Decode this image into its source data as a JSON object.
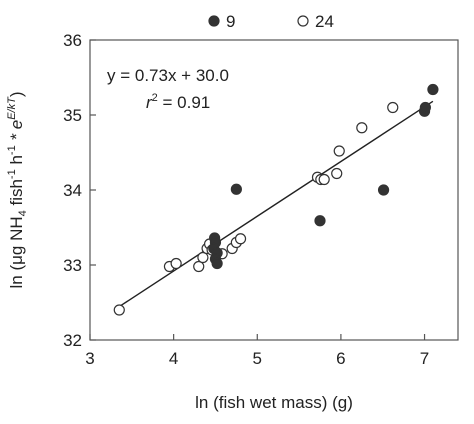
{
  "chart_data": {
    "type": "scatter",
    "title": "",
    "xlabel": "ln (fish wet mass) (g)",
    "ylabel_parts": {
      "pre": "ln (μg NH",
      "sub4": "4",
      "mid1": " fish",
      "sup1a": "-1",
      "mid2": " h",
      "sup1b": "-1",
      "mid3": " * e",
      "supE": "E/kT",
      "post": ")"
    },
    "xlim": [
      3,
      7.4
    ],
    "ylim": [
      32,
      36
    ],
    "xticks": [
      "3",
      "4",
      "5",
      "6",
      "7"
    ],
    "yticks": [
      "32",
      "33",
      "34",
      "35",
      "36"
    ],
    "grid": false,
    "legend": {
      "placement": "top-center"
    },
    "series": [
      {
        "name": "9",
        "marker": "filled",
        "color": "#333333",
        "points": [
          [
            4.49,
            33.36
          ],
          [
            4.5,
            33.3
          ],
          [
            4.48,
            33.22
          ],
          [
            4.52,
            33.16
          ],
          [
            4.5,
            33.08
          ],
          [
            4.52,
            33.02
          ],
          [
            4.75,
            34.01
          ],
          [
            5.75,
            33.59
          ],
          [
            6.51,
            34.0
          ],
          [
            7.0,
            35.05
          ],
          [
            7.01,
            35.1
          ],
          [
            7.1,
            35.34
          ]
        ]
      },
      {
        "name": "24",
        "marker": "open",
        "color": "#333333",
        "points": [
          [
            3.35,
            32.4
          ],
          [
            3.95,
            32.98
          ],
          [
            4.03,
            33.02
          ],
          [
            4.3,
            32.98
          ],
          [
            4.35,
            33.1
          ],
          [
            4.4,
            33.22
          ],
          [
            4.43,
            33.28
          ],
          [
            4.46,
            33.2
          ],
          [
            4.58,
            33.15
          ],
          [
            4.7,
            33.22
          ],
          [
            4.75,
            33.3
          ],
          [
            4.8,
            33.35
          ],
          [
            5.72,
            34.17
          ],
          [
            5.76,
            34.14
          ],
          [
            5.8,
            34.14
          ],
          [
            5.95,
            34.22
          ],
          [
            5.98,
            34.52
          ],
          [
            6.25,
            34.83
          ],
          [
            6.62,
            35.1
          ]
        ]
      }
    ],
    "fit_line": {
      "slope": 0.73,
      "intercept": 30.0,
      "x_range": [
        3.35,
        7.1
      ]
    },
    "annotations": {
      "equation": "y = 0.73x + 30.0",
      "r2_symbol": "r",
      "r2_sup": "2",
      "r2_value": " = 0.91"
    }
  }
}
